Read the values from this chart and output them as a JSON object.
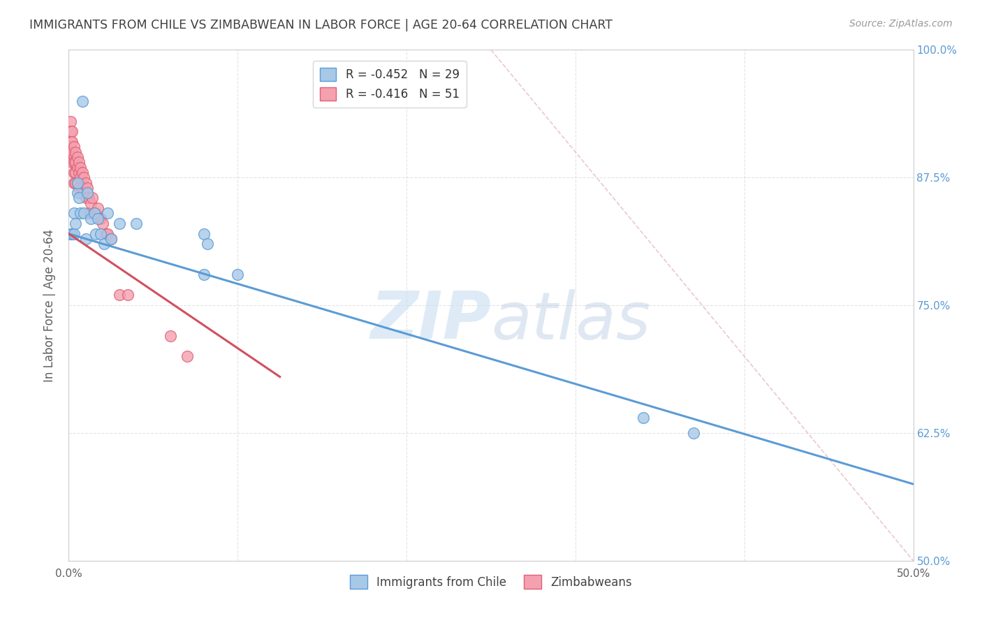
{
  "title": "IMMIGRANTS FROM CHILE VS ZIMBABWEAN IN LABOR FORCE | AGE 20-64 CORRELATION CHART",
  "source": "Source: ZipAtlas.com",
  "ylabel": "In Labor Force | Age 20-64",
  "xlim": [
    0.0,
    0.5
  ],
  "ylim": [
    0.5,
    1.0
  ],
  "xticks": [
    0.0,
    0.1,
    0.2,
    0.3,
    0.4,
    0.5
  ],
  "xtick_labels_show": [
    "0.0%",
    "",
    "",
    "",
    "",
    "50.0%"
  ],
  "yticks": [
    0.5,
    0.625,
    0.75,
    0.875,
    1.0
  ],
  "ytick_labels": [
    "50.0%",
    "62.5%",
    "75.0%",
    "87.5%",
    "100.0%"
  ],
  "chile_R": -0.452,
  "chile_N": 29,
  "zim_R": -0.416,
  "zim_N": 51,
  "chile_color": "#a8c8e8",
  "zim_color": "#f4a0b0",
  "chile_edge_color": "#5b9bd5",
  "zim_edge_color": "#e06070",
  "chile_line_color": "#5b9bd5",
  "zim_line_color": "#d05060",
  "watermark_zip": "ZIP",
  "watermark_atlas": "atlas",
  "background_color": "#ffffff",
  "grid_color": "#dddddd",
  "title_color": "#404040",
  "axis_label_color": "#606060",
  "right_tick_color": "#5b9bd5",
  "chile_x": [
    0.001,
    0.002,
    0.003,
    0.003,
    0.004,
    0.005,
    0.005,
    0.006,
    0.007,
    0.008,
    0.009,
    0.01,
    0.011,
    0.013,
    0.015,
    0.016,
    0.017,
    0.019,
    0.021,
    0.023,
    0.025,
    0.03,
    0.04,
    0.08,
    0.08,
    0.1,
    0.34,
    0.37,
    0.082
  ],
  "chile_y": [
    0.82,
    0.82,
    0.84,
    0.82,
    0.83,
    0.86,
    0.87,
    0.855,
    0.84,
    0.95,
    0.84,
    0.815,
    0.86,
    0.835,
    0.84,
    0.82,
    0.835,
    0.82,
    0.81,
    0.84,
    0.815,
    0.83,
    0.83,
    0.82,
    0.78,
    0.78,
    0.64,
    0.625,
    0.81
  ],
  "zim_x": [
    0.001,
    0.001,
    0.001,
    0.001,
    0.001,
    0.002,
    0.002,
    0.002,
    0.002,
    0.003,
    0.003,
    0.003,
    0.003,
    0.003,
    0.004,
    0.004,
    0.004,
    0.004,
    0.005,
    0.005,
    0.005,
    0.006,
    0.006,
    0.006,
    0.007,
    0.007,
    0.007,
    0.008,
    0.008,
    0.009,
    0.009,
    0.01,
    0.01,
    0.011,
    0.012,
    0.012,
    0.013,
    0.014,
    0.015,
    0.016,
    0.017,
    0.018,
    0.019,
    0.02,
    0.022,
    0.023,
    0.025,
    0.03,
    0.035,
    0.06,
    0.07
  ],
  "zim_y": [
    0.93,
    0.92,
    0.91,
    0.905,
    0.895,
    0.92,
    0.91,
    0.9,
    0.89,
    0.905,
    0.895,
    0.89,
    0.88,
    0.87,
    0.9,
    0.89,
    0.88,
    0.87,
    0.895,
    0.885,
    0.87,
    0.89,
    0.88,
    0.865,
    0.885,
    0.875,
    0.86,
    0.88,
    0.865,
    0.875,
    0.86,
    0.87,
    0.855,
    0.865,
    0.855,
    0.84,
    0.85,
    0.855,
    0.84,
    0.84,
    0.845,
    0.835,
    0.835,
    0.83,
    0.82,
    0.82,
    0.815,
    0.76,
    0.76,
    0.72,
    0.7
  ],
  "chile_trend_x": [
    0.0,
    0.5
  ],
  "chile_trend_y": [
    0.82,
    0.575
  ],
  "zim_trend_x": [
    0.0,
    0.125
  ],
  "zim_trend_y": [
    0.82,
    0.68
  ],
  "ref_line_x": [
    0.25,
    0.5
  ],
  "ref_line_y": [
    1.0,
    0.5
  ]
}
